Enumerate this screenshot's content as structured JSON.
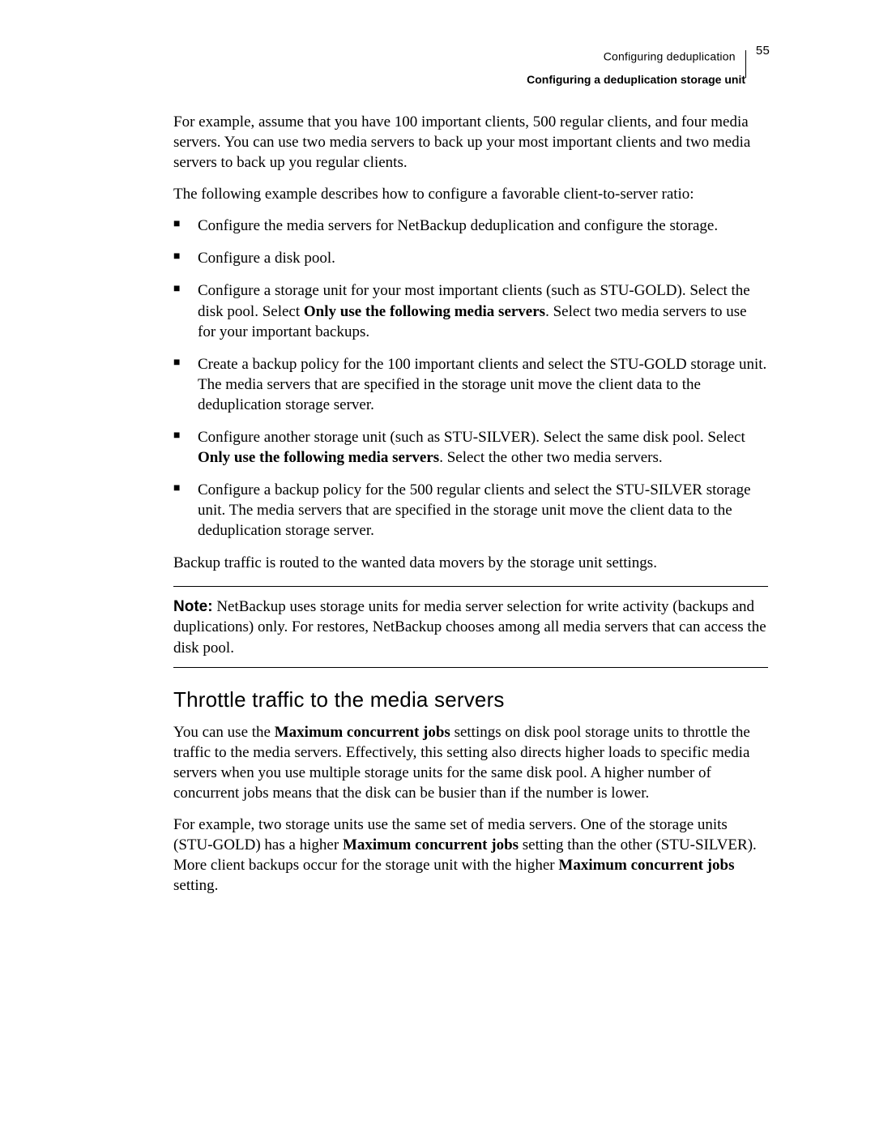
{
  "header": {
    "chapter": "Configuring deduplication",
    "section": "Configuring a deduplication storage unit",
    "page_number": "55"
  },
  "para1": "For example, assume that you have 100 important clients, 500 regular clients, and four media servers. You can use two media servers to back up your most important clients and two media servers to back up you regular clients.",
  "para2": "The following example describes how to configure a favorable client-to-server ratio:",
  "bullets": [
    {
      "pre": "Configure the media servers for NetBackup deduplication and configure the storage."
    },
    {
      "pre": "Configure a disk pool."
    },
    {
      "pre": "Configure a storage unit for your most important clients (such as STU-GOLD). Select the disk pool. Select ",
      "bold": "Only use the following media servers",
      "post": ". Select two media servers to use for your important backups."
    },
    {
      "pre": "Create a backup policy for the 100 important clients and select the STU-GOLD storage unit. The media servers that are specified in the storage unit move the client data to the deduplication storage server."
    },
    {
      "pre": "Configure another storage unit (such as STU-SILVER). Select the same disk pool. Select ",
      "bold": "Only use the following media servers",
      "post": ". Select the other two media servers."
    },
    {
      "pre": "Configure a backup policy for the 500 regular clients and select the STU-SILVER storage unit. The media servers that are specified in the storage unit move the client data to the deduplication storage server."
    }
  ],
  "para3": "Backup traffic is routed to the wanted data movers by the storage unit settings.",
  "note": {
    "label": "Note:",
    "text": " NetBackup uses storage units for media server selection for write activity (backups and duplications) only. For restores, NetBackup chooses among all media servers that can access the disk pool."
  },
  "h2": "Throttle traffic to the media servers",
  "para4": {
    "pre": "You can use the ",
    "bold": "Maximum concurrent jobs",
    "post": " settings on disk pool storage units to throttle the traffic to the media servers. Effectively, this setting also directs higher loads to specific media servers when you use multiple storage units for the same disk pool. A higher number of concurrent jobs means that the disk can be busier than if the number is lower."
  },
  "para5": {
    "pre": "For example, two storage units use the same set of media servers. One of the storage units (STU-GOLD) has a higher ",
    "bold1": "Maximum concurrent jobs",
    "mid": " setting than the other (STU-SILVER). More client backups occur for the storage unit with the higher ",
    "bold2": "Maximum concurrent jobs",
    "post": " setting."
  }
}
